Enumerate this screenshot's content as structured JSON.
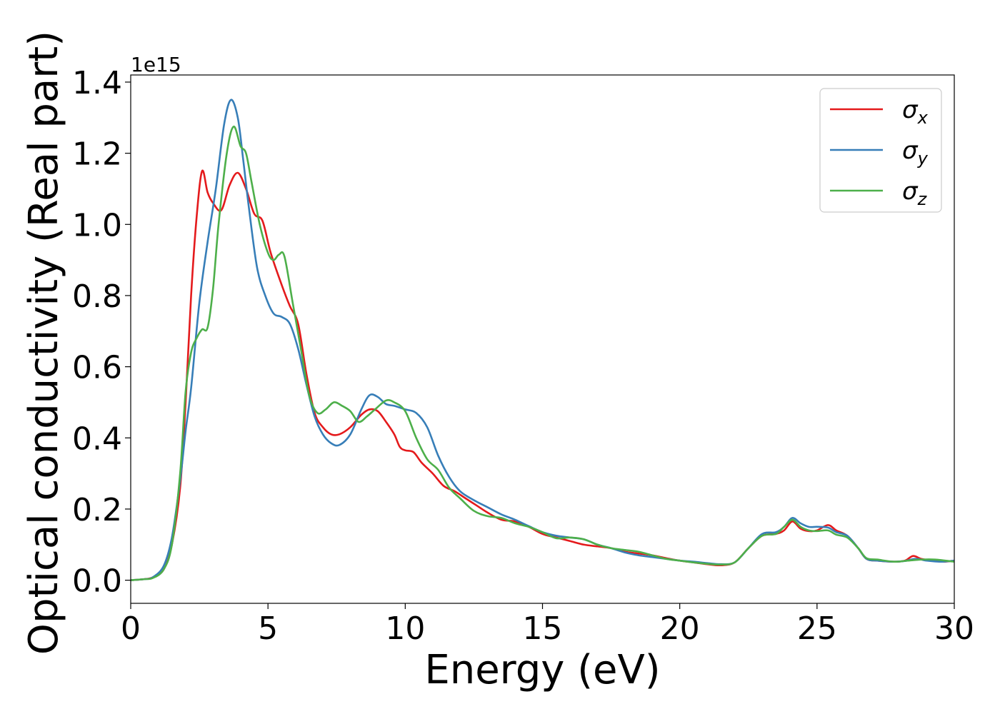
{
  "chart_data": {
    "type": "line",
    "title": "",
    "xlabel": "Energy (eV)",
    "ylabel": "Optical conductivity (Real part)",
    "y_offset_label": "1e15",
    "xlim": [
      0,
      30
    ],
    "ylim": [
      -0.065,
      1.42
    ],
    "x_ticks": [
      0,
      5,
      10,
      15,
      20,
      25,
      30
    ],
    "x_tick_labels": [
      "0",
      "5",
      "10",
      "15",
      "20",
      "25",
      "30"
    ],
    "y_ticks": [
      0.0,
      0.2,
      0.4,
      0.6,
      0.8,
      1.0,
      1.2,
      1.4
    ],
    "y_tick_labels": [
      "0.0",
      "0.2",
      "0.4",
      "0.6",
      "0.8",
      "1.0",
      "1.2",
      "1.4"
    ],
    "grid": false,
    "legend_position": "top-right",
    "series": [
      {
        "name": "σ_x",
        "legend_base": "σ",
        "legend_sub": "x",
        "color": "#e41a1c",
        "points": [
          [
            0,
            0
          ],
          [
            0.5,
            0.003
          ],
          [
            0.8,
            0.008
          ],
          [
            1.2,
            0.03
          ],
          [
            1.5,
            0.1
          ],
          [
            1.8,
            0.26
          ],
          [
            2.0,
            0.5
          ],
          [
            2.2,
            0.8
          ],
          [
            2.4,
            1.02
          ],
          [
            2.6,
            1.15
          ],
          [
            2.8,
            1.09
          ],
          [
            3.0,
            1.06
          ],
          [
            3.3,
            1.04
          ],
          [
            3.6,
            1.11
          ],
          [
            3.9,
            1.145
          ],
          [
            4.2,
            1.1
          ],
          [
            4.5,
            1.03
          ],
          [
            4.8,
            1.01
          ],
          [
            5.1,
            0.92
          ],
          [
            5.5,
            0.83
          ],
          [
            5.8,
            0.77
          ],
          [
            6.1,
            0.72
          ],
          [
            6.4,
            0.58
          ],
          [
            6.7,
            0.47
          ],
          [
            7.0,
            0.43
          ],
          [
            7.3,
            0.41
          ],
          [
            7.6,
            0.41
          ],
          [
            8.0,
            0.43
          ],
          [
            8.4,
            0.465
          ],
          [
            8.7,
            0.48
          ],
          [
            9.0,
            0.475
          ],
          [
            9.3,
            0.445
          ],
          [
            9.6,
            0.41
          ],
          [
            9.8,
            0.375
          ],
          [
            10.0,
            0.365
          ],
          [
            10.3,
            0.36
          ],
          [
            10.6,
            0.33
          ],
          [
            11.0,
            0.3
          ],
          [
            11.4,
            0.265
          ],
          [
            11.8,
            0.25
          ],
          [
            12.2,
            0.23
          ],
          [
            12.6,
            0.21
          ],
          [
            13.0,
            0.19
          ],
          [
            13.5,
            0.17
          ],
          [
            14.0,
            0.165
          ],
          [
            14.5,
            0.15
          ],
          [
            15.0,
            0.13
          ],
          [
            15.5,
            0.12
          ],
          [
            16.0,
            0.11
          ],
          [
            16.5,
            0.1
          ],
          [
            17.0,
            0.095
          ],
          [
            17.5,
            0.09
          ],
          [
            18.0,
            0.08
          ],
          [
            18.5,
            0.075
          ],
          [
            19.0,
            0.07
          ],
          [
            19.5,
            0.062
          ],
          [
            20.0,
            0.055
          ],
          [
            20.5,
            0.05
          ],
          [
            21.0,
            0.045
          ],
          [
            21.5,
            0.042
          ],
          [
            22.0,
            0.05
          ],
          [
            22.5,
            0.09
          ],
          [
            23.0,
            0.125
          ],
          [
            23.5,
            0.13
          ],
          [
            23.8,
            0.14
          ],
          [
            24.1,
            0.165
          ],
          [
            24.4,
            0.145
          ],
          [
            24.7,
            0.138
          ],
          [
            25.0,
            0.14
          ],
          [
            25.4,
            0.155
          ],
          [
            25.7,
            0.14
          ],
          [
            26.1,
            0.125
          ],
          [
            26.5,
            0.09
          ],
          [
            26.8,
            0.06
          ],
          [
            27.2,
            0.055
          ],
          [
            27.8,
            0.052
          ],
          [
            28.2,
            0.055
          ],
          [
            28.5,
            0.068
          ],
          [
            28.8,
            0.06
          ],
          [
            29.2,
            0.055
          ],
          [
            29.6,
            0.052
          ],
          [
            30.0,
            0.055
          ]
        ]
      },
      {
        "name": "σ_y",
        "legend_base": "σ",
        "legend_sub": "y",
        "color": "#377eb8",
        "points": [
          [
            0,
            0
          ],
          [
            0.5,
            0.003
          ],
          [
            0.8,
            0.008
          ],
          [
            1.2,
            0.04
          ],
          [
            1.5,
            0.12
          ],
          [
            1.8,
            0.28
          ],
          [
            2.0,
            0.42
          ],
          [
            2.2,
            0.54
          ],
          [
            2.5,
            0.78
          ],
          [
            2.8,
            0.95
          ],
          [
            3.1,
            1.1
          ],
          [
            3.4,
            1.28
          ],
          [
            3.65,
            1.35
          ],
          [
            3.9,
            1.3
          ],
          [
            4.1,
            1.18
          ],
          [
            4.3,
            1.05
          ],
          [
            4.6,
            0.88
          ],
          [
            4.9,
            0.8
          ],
          [
            5.2,
            0.75
          ],
          [
            5.5,
            0.74
          ],
          [
            5.8,
            0.72
          ],
          [
            6.1,
            0.65
          ],
          [
            6.4,
            0.55
          ],
          [
            6.7,
            0.46
          ],
          [
            7.0,
            0.41
          ],
          [
            7.3,
            0.385
          ],
          [
            7.6,
            0.38
          ],
          [
            8.0,
            0.41
          ],
          [
            8.4,
            0.48
          ],
          [
            8.7,
            0.52
          ],
          [
            9.0,
            0.515
          ],
          [
            9.3,
            0.495
          ],
          [
            9.6,
            0.49
          ],
          [
            10.0,
            0.48
          ],
          [
            10.4,
            0.47
          ],
          [
            10.8,
            0.43
          ],
          [
            11.2,
            0.35
          ],
          [
            11.6,
            0.29
          ],
          [
            12.0,
            0.25
          ],
          [
            12.5,
            0.225
          ],
          [
            13.0,
            0.205
          ],
          [
            13.5,
            0.185
          ],
          [
            14.0,
            0.17
          ],
          [
            14.5,
            0.152
          ],
          [
            15.0,
            0.135
          ],
          [
            15.5,
            0.125
          ],
          [
            16.0,
            0.12
          ],
          [
            16.5,
            0.115
          ],
          [
            17.0,
            0.1
          ],
          [
            17.5,
            0.09
          ],
          [
            18.0,
            0.078
          ],
          [
            18.5,
            0.07
          ],
          [
            19.0,
            0.065
          ],
          [
            19.5,
            0.06
          ],
          [
            20.0,
            0.055
          ],
          [
            20.5,
            0.052
          ],
          [
            21.0,
            0.048
          ],
          [
            21.5,
            0.045
          ],
          [
            22.0,
            0.05
          ],
          [
            22.5,
            0.09
          ],
          [
            23.0,
            0.13
          ],
          [
            23.5,
            0.135
          ],
          [
            23.8,
            0.15
          ],
          [
            24.1,
            0.175
          ],
          [
            24.4,
            0.16
          ],
          [
            24.7,
            0.15
          ],
          [
            25.0,
            0.15
          ],
          [
            25.4,
            0.148
          ],
          [
            25.7,
            0.135
          ],
          [
            26.1,
            0.125
          ],
          [
            26.5,
            0.09
          ],
          [
            26.8,
            0.06
          ],
          [
            27.2,
            0.055
          ],
          [
            27.8,
            0.052
          ],
          [
            28.2,
            0.054
          ],
          [
            28.6,
            0.06
          ],
          [
            29.0,
            0.055
          ],
          [
            29.5,
            0.052
          ],
          [
            30.0,
            0.055
          ]
        ]
      },
      {
        "name": "σ_z",
        "legend_base": "σ",
        "legend_sub": "z",
        "color": "#4daf4a",
        "points": [
          [
            0,
            0
          ],
          [
            0.5,
            0.003
          ],
          [
            0.8,
            0.006
          ],
          [
            1.2,
            0.03
          ],
          [
            1.5,
            0.1
          ],
          [
            1.8,
            0.3
          ],
          [
            2.0,
            0.53
          ],
          [
            2.2,
            0.64
          ],
          [
            2.4,
            0.68
          ],
          [
            2.6,
            0.705
          ],
          [
            2.8,
            0.71
          ],
          [
            3.0,
            0.82
          ],
          [
            3.2,
            1.0
          ],
          [
            3.5,
            1.2
          ],
          [
            3.75,
            1.275
          ],
          [
            4.0,
            1.22
          ],
          [
            4.2,
            1.2
          ],
          [
            4.4,
            1.12
          ],
          [
            4.7,
            1.0
          ],
          [
            5.0,
            0.92
          ],
          [
            5.2,
            0.9
          ],
          [
            5.4,
            0.915
          ],
          [
            5.6,
            0.91
          ],
          [
            5.9,
            0.78
          ],
          [
            6.2,
            0.65
          ],
          [
            6.5,
            0.52
          ],
          [
            6.8,
            0.47
          ],
          [
            7.1,
            0.48
          ],
          [
            7.4,
            0.5
          ],
          [
            7.7,
            0.49
          ],
          [
            8.0,
            0.475
          ],
          [
            8.3,
            0.445
          ],
          [
            8.6,
            0.46
          ],
          [
            8.9,
            0.48
          ],
          [
            9.3,
            0.505
          ],
          [
            9.6,
            0.5
          ],
          [
            10.0,
            0.475
          ],
          [
            10.4,
            0.4
          ],
          [
            10.8,
            0.34
          ],
          [
            11.2,
            0.31
          ],
          [
            11.6,
            0.26
          ],
          [
            12.0,
            0.23
          ],
          [
            12.5,
            0.195
          ],
          [
            13.0,
            0.18
          ],
          [
            13.5,
            0.175
          ],
          [
            14.0,
            0.16
          ],
          [
            14.5,
            0.15
          ],
          [
            15.0,
            0.135
          ],
          [
            15.5,
            0.118
          ],
          [
            16.0,
            0.12
          ],
          [
            16.5,
            0.115
          ],
          [
            17.0,
            0.1
          ],
          [
            17.5,
            0.09
          ],
          [
            18.0,
            0.085
          ],
          [
            18.5,
            0.08
          ],
          [
            19.0,
            0.07
          ],
          [
            19.5,
            0.06
          ],
          [
            20.0,
            0.055
          ],
          [
            20.5,
            0.05
          ],
          [
            21.0,
            0.046
          ],
          [
            21.5,
            0.044
          ],
          [
            22.0,
            0.05
          ],
          [
            22.5,
            0.09
          ],
          [
            23.0,
            0.125
          ],
          [
            23.5,
            0.13
          ],
          [
            23.8,
            0.15
          ],
          [
            24.1,
            0.17
          ],
          [
            24.4,
            0.15
          ],
          [
            24.7,
            0.14
          ],
          [
            25.0,
            0.138
          ],
          [
            25.4,
            0.14
          ],
          [
            25.7,
            0.128
          ],
          [
            26.1,
            0.12
          ],
          [
            26.5,
            0.09
          ],
          [
            26.8,
            0.062
          ],
          [
            27.2,
            0.058
          ],
          [
            27.8,
            0.052
          ],
          [
            28.3,
            0.055
          ],
          [
            28.8,
            0.058
          ],
          [
            29.3,
            0.058
          ],
          [
            30.0,
            0.052
          ]
        ]
      }
    ]
  }
}
